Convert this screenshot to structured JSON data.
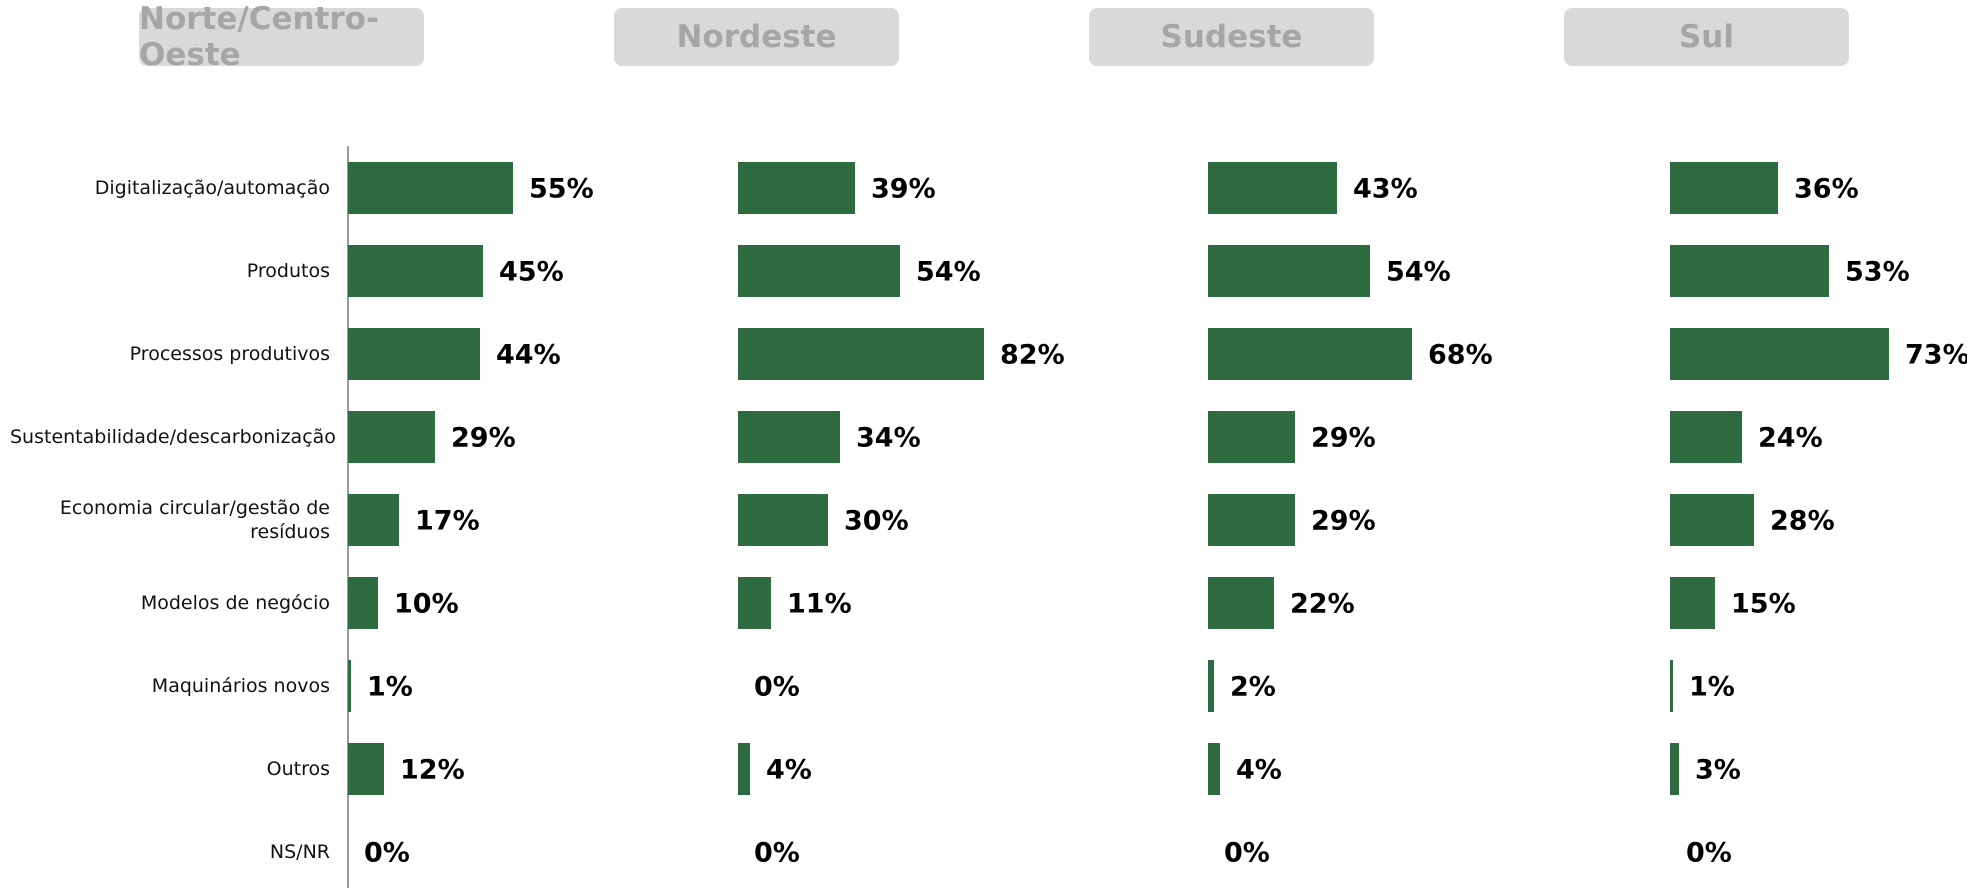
{
  "chart_data": {
    "type": "bar",
    "orientation": "horizontal",
    "categories": [
      "Digitalização/automação",
      "Produtos",
      "Processos produtivos",
      "Sustentabilidade/descarbonização",
      "Economia circular/gestão de resíduos",
      "Modelos de negócio",
      "Maquinários novos",
      "Outros",
      "NS/NR"
    ],
    "series": [
      {
        "name": "Norte/Centro-Oeste",
        "color": "#2e6b40",
        "values": [
          55,
          45,
          44,
          29,
          17,
          10,
          1,
          12,
          0
        ],
        "value_labels": [
          "55%",
          "45%",
          "44%",
          "29%",
          "17%",
          "10%",
          "1%",
          "12%",
          "0%"
        ]
      },
      {
        "name": "Nordeste",
        "color": "#2e6b40",
        "values": [
          39,
          54,
          82,
          34,
          30,
          11,
          0,
          4,
          0
        ],
        "value_labels": [
          "39%",
          "54%",
          "82%",
          "34%",
          "30%",
          "11%",
          "0%",
          "4%",
          "0%"
        ]
      },
      {
        "name": "Sudeste",
        "color": "#2e6b40",
        "values": [
          43,
          54,
          68,
          29,
          29,
          22,
          2,
          4,
          0
        ],
        "value_labels": [
          "43%",
          "54%",
          "68%",
          "29%",
          "29%",
          "22%",
          "2%",
          "4%",
          "0%"
        ]
      },
      {
        "name": "Sul",
        "color": "#2e6b40",
        "values": [
          36,
          53,
          73,
          24,
          28,
          15,
          1,
          3,
          0
        ],
        "value_labels": [
          "36%",
          "53%",
          "73%",
          "24%",
          "28%",
          "15%",
          "1%",
          "3%",
          "0%"
        ]
      }
    ]
  }
}
